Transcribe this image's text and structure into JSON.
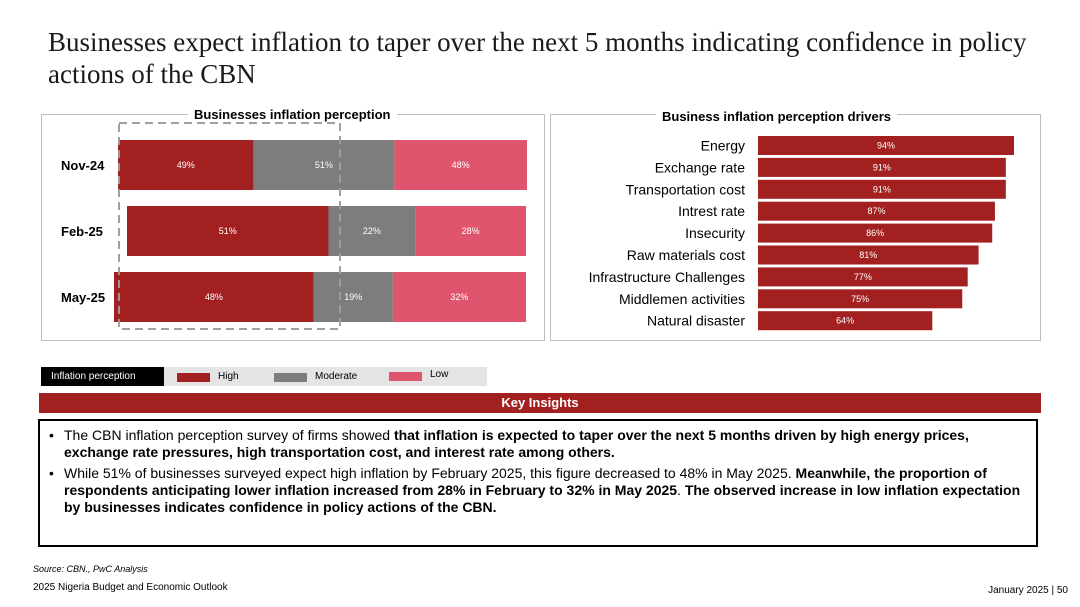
{
  "page": {
    "title": "Businesses expect inflation to taper over the next 5 months indicating confidence in policy actions of the CBN"
  },
  "colors": {
    "high": "#a32020",
    "moderate": "#7d7d7d",
    "low": "#e0556e"
  },
  "chart_data": [
    {
      "type": "bar",
      "orientation": "horizontal-stacked",
      "title": "Businesses inflation perception",
      "categories": [
        "Nov-24",
        "Feb-25",
        "May-25"
      ],
      "series": [
        {
          "name": "High",
          "values": [
            49,
            51,
            48
          ],
          "labels": [
            "49%",
            "51%",
            "48%"
          ]
        },
        {
          "name": "Moderate",
          "values": [
            51,
            22,
            19
          ],
          "labels": [
            "51%",
            "22%",
            "19%"
          ]
        },
        {
          "name": "Low",
          "values": [
            48,
            28,
            32
          ],
          "labels": [
            "48%",
            "28%",
            "32%"
          ]
        }
      ]
    },
    {
      "type": "bar",
      "orientation": "horizontal",
      "title": "Business inflation perception drivers",
      "categories": [
        "Energy",
        "Exchange rate",
        "Transportation cost",
        "Intrest rate",
        "Insecurity",
        "Raw materials cost",
        "Infrastructure Challenges",
        "Middlemen activities",
        "Natural disaster"
      ],
      "values": [
        94,
        91,
        91,
        87,
        86,
        81,
        77,
        75,
        64
      ],
      "labels": [
        "94%",
        "91%",
        "91%",
        "87%",
        "86%",
        "81%",
        "77%",
        "75%",
        "64%"
      ]
    }
  ],
  "legend": {
    "title": "Inflation perception",
    "items": [
      "High",
      "Moderate",
      "Low"
    ]
  },
  "insights": {
    "header": "Key Insights",
    "bullet": "•",
    "items": [
      [
        {
          "text": "The CBN inflation perception survey of firms showed ",
          "bold": false
        },
        {
          "text": "that inflation is expected to taper over the next 5 months driven by high energy prices, exchange rate pressures, high transportation cost, and interest rate among others.",
          "bold": true
        }
      ],
      [
        {
          "text": "While 51% of businesses surveyed expect high inflation by February 2025, this figure decreased to 48% in May 2025. ",
          "bold": false
        },
        {
          "text": "Meanwhile, the proportion of respondents anticipating lower inflation increased from 28% in February to 32% in May 2025",
          "bold": true
        },
        {
          "text": ". ",
          "bold": false
        },
        {
          "text": "The observed increase in low inflation expectation by businesses indicates confidence in policy actions of the CBN.",
          "bold": true
        }
      ]
    ]
  },
  "footer": {
    "source": "Source: CBN., PwC Analysis",
    "left": "2025 Nigeria Budget and Economic Outlook",
    "right": "January 2025 | 50"
  }
}
